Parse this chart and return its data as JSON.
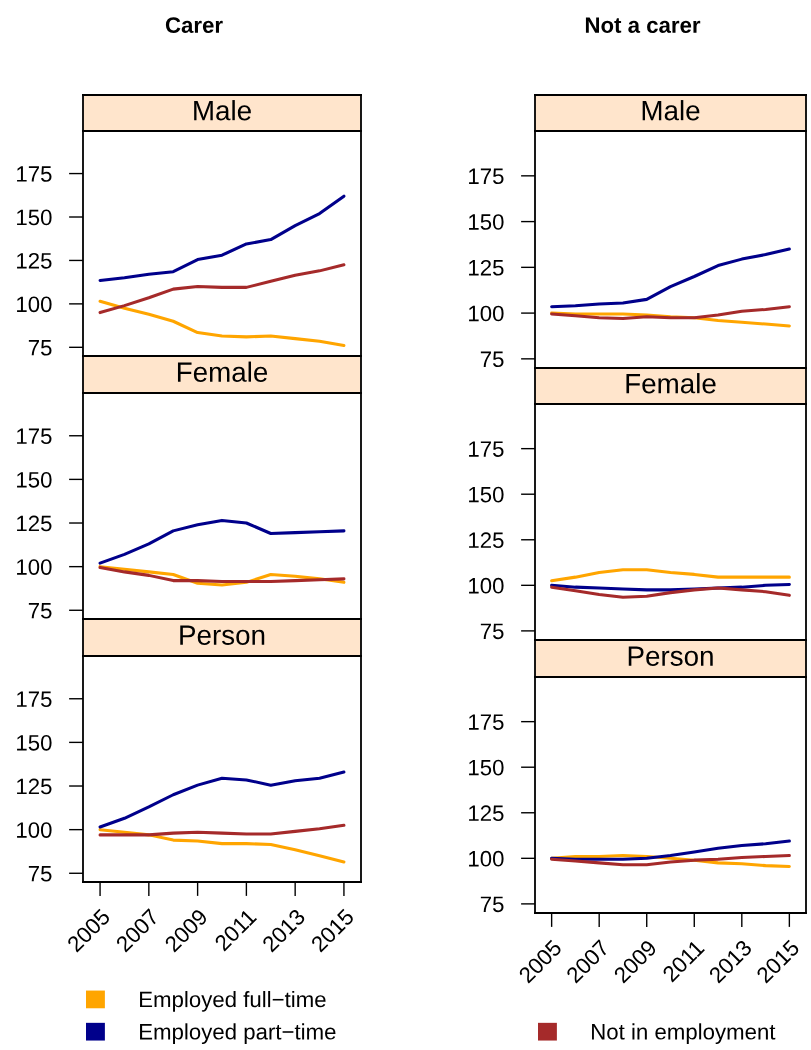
{
  "chart_data": [
    {
      "type": "line",
      "title": "Carer",
      "subtitle": "Male",
      "x": [
        2005,
        2006,
        2007,
        2008,
        2009,
        2010,
        2011,
        2012,
        2013,
        2014,
        2015
      ],
      "xlim": [
        2004.3,
        2015.7
      ],
      "ylim": [
        70,
        199.5
      ],
      "yticks": [
        75,
        100,
        125,
        150,
        175
      ],
      "tick_labels": "y",
      "series": [
        {
          "color": "#ffa500",
          "values": [
            101.5,
            97.5,
            94,
            90,
            83.5,
            81.5,
            81,
            81.5,
            80,
            78.5,
            76
          ]
        },
        {
          "color": "#00008b",
          "values": [
            113.5,
            115,
            117,
            118.5,
            125.5,
            128,
            134.5,
            137,
            145,
            152,
            162
          ]
        },
        {
          "color": "#a52a2a",
          "values": [
            95,
            99,
            103.5,
            108.5,
            110,
            109.5,
            109.5,
            113,
            116.5,
            119,
            122.5
          ]
        }
      ]
    },
    {
      "type": "line",
      "subtitle": "Female",
      "x": [
        2005,
        2006,
        2007,
        2008,
        2009,
        2010,
        2011,
        2012,
        2013,
        2014,
        2015
      ],
      "xlim": [
        2004.3,
        2015.7
      ],
      "ylim": [
        70,
        199.5
      ],
      "yticks": [
        75,
        100,
        125,
        150,
        175
      ],
      "tick_labels": "y",
      "series": [
        {
          "color": "#ffa500",
          "values": [
            100,
            98.5,
            97,
            95.5,
            90.5,
            89.5,
            91,
            95.5,
            94.5,
            93,
            91
          ]
        },
        {
          "color": "#00008b",
          "values": [
            102,
            107,
            113,
            120.5,
            124,
            126.5,
            125,
            119,
            119.5,
            120,
            120.5
          ]
        },
        {
          "color": "#a52a2a",
          "values": [
            99.5,
            97,
            95,
            92,
            92,
            91.5,
            91.5,
            91.5,
            92,
            92.5,
            93
          ]
        }
      ]
    },
    {
      "type": "line",
      "subtitle": "Person",
      "x": [
        2005,
        2006,
        2007,
        2008,
        2009,
        2010,
        2011,
        2012,
        2013,
        2014,
        2015
      ],
      "xlim": [
        2004.3,
        2015.7
      ],
      "xticks": [
        2005,
        2007,
        2009,
        2011,
        2013,
        2015
      ],
      "ylim": [
        70,
        199.5
      ],
      "yticks": [
        75,
        100,
        125,
        150,
        175
      ],
      "legend": "bottom",
      "series": [
        {
          "name": "Employed full−time",
          "color": "#ffa500",
          "values": [
            100,
            98.5,
            97,
            94,
            93.5,
            92,
            92,
            91.5,
            88.5,
            85,
            81.5
          ]
        },
        {
          "name": "Employed part−time",
          "color": "#00008b",
          "values": [
            101.5,
            106.5,
            113,
            120,
            125.5,
            129.5,
            128.5,
            125.5,
            128,
            129.5,
            133
          ]
        },
        {
          "name": "Not in employment",
          "color": "#a52a2a",
          "values": [
            97,
            97,
            97,
            98,
            98.5,
            98,
            97.5,
            97.5,
            99,
            100.5,
            102.5
          ]
        }
      ]
    },
    {
      "type": "line",
      "title": "Not a carer",
      "subtitle": "Male",
      "x": [
        2005,
        2006,
        2007,
        2008,
        2009,
        2010,
        2011,
        2012,
        2013,
        2014,
        2015
      ],
      "xlim": [
        2004.3,
        2015.7
      ],
      "ylim": [
        70,
        199.5
      ],
      "yticks": [
        75,
        100,
        125,
        150,
        175
      ],
      "tick_labels": "y",
      "series": [
        {
          "color": "#ffa500",
          "values": [
            100,
            99.5,
            99.5,
            99.5,
            99,
            98,
            97.5,
            96,
            95,
            94,
            93
          ]
        },
        {
          "color": "#00008b",
          "values": [
            103.5,
            104,
            105,
            105.5,
            107.5,
            114.5,
            120,
            126,
            129.5,
            132,
            135
          ]
        },
        {
          "color": "#a52a2a",
          "values": [
            99.5,
            98.5,
            97.5,
            97,
            98,
            97.5,
            97.5,
            99,
            101,
            102,
            103.5
          ]
        }
      ]
    },
    {
      "type": "line",
      "subtitle": "Female",
      "x": [
        2005,
        2006,
        2007,
        2008,
        2009,
        2010,
        2011,
        2012,
        2013,
        2014,
        2015
      ],
      "xlim": [
        2004.3,
        2015.7
      ],
      "ylim": [
        70,
        199.5
      ],
      "yticks": [
        75,
        100,
        125,
        150,
        175
      ],
      "tick_labels": "y",
      "series": [
        {
          "color": "#ffa500",
          "values": [
            102.5,
            104.5,
            107,
            108.5,
            108.5,
            107,
            106,
            104.5,
            104.5,
            104.5,
            104.5
          ]
        },
        {
          "color": "#00008b",
          "values": [
            100,
            99,
            98.5,
            98,
            97.5,
            97.5,
            98,
            98.5,
            99,
            100,
            100.5
          ]
        },
        {
          "color": "#a52a2a",
          "values": [
            99,
            97,
            95,
            93.5,
            94,
            96,
            97.5,
            98.5,
            97.5,
            96.5,
            94.5
          ]
        }
      ]
    },
    {
      "type": "line",
      "subtitle": "Person",
      "x": [
        2005,
        2006,
        2007,
        2008,
        2009,
        2010,
        2011,
        2012,
        2013,
        2014,
        2015
      ],
      "xlim": [
        2004.3,
        2015.7
      ],
      "xticks": [
        2005,
        2007,
        2009,
        2011,
        2013,
        2015
      ],
      "ylim": [
        70,
        199.5
      ],
      "yticks": [
        75,
        100,
        125,
        150,
        175
      ],
      "series": [
        {
          "color": "#ffa500",
          "values": [
            100,
            101,
            101,
            101.5,
            101,
            100,
            99,
            97.5,
            97,
            96,
            95.5
          ]
        },
        {
          "color": "#00008b",
          "values": [
            100,
            99.5,
            99.5,
            99.5,
            100,
            101.5,
            103.5,
            105.5,
            107,
            108,
            109.5
          ]
        },
        {
          "color": "#a52a2a",
          "values": [
            99.5,
            98.5,
            97.5,
            96.5,
            96.5,
            98,
            99,
            99.5,
            100.5,
            101,
            101.5
          ]
        }
      ]
    }
  ]
}
